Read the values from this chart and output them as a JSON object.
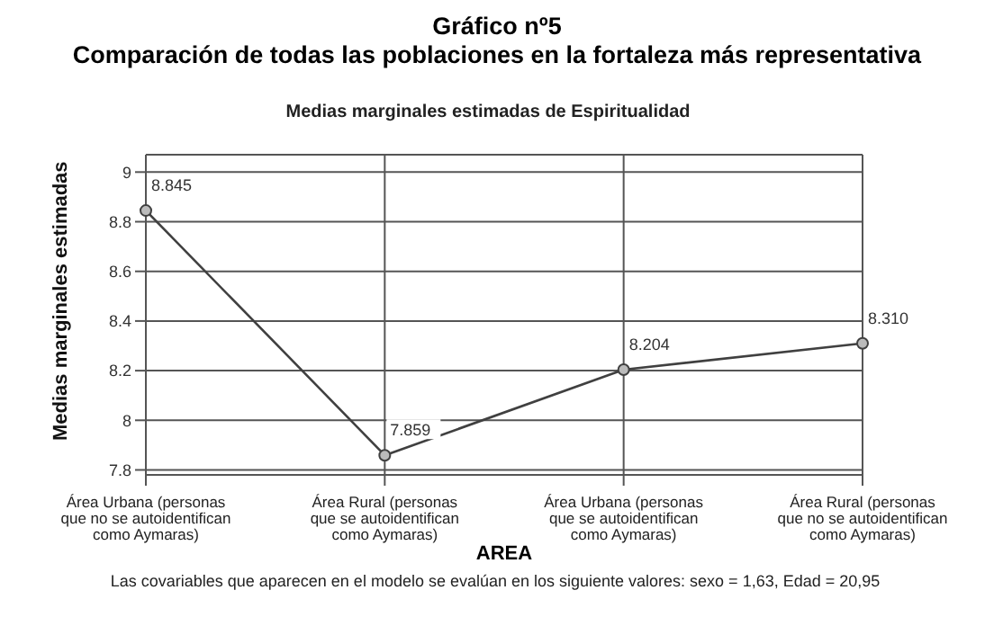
{
  "chart_data": {
    "type": "line",
    "title": "Gráfico nº5\nComparación de todas las poblaciones en la fortaleza más representativa",
    "subtitle": "Medias marginales estimadas de Espiritualidad",
    "xlabel": "AREA",
    "ylabel": "Medias marginales estimadas",
    "categories": [
      "Área Urbana (personas\nque no se autoidentifican\ncomo Aymaras)",
      "Área Rural (personas\nque se autoidentifican\ncomo Aymaras)",
      "Área Urbana (personas\nque se autoidentifican\ncomo Aymaras)",
      "Área Rural (personas\nque no se autoidentifican\ncomo Aymaras)"
    ],
    "series": [
      {
        "color": "#404040",
        "values": [
          8.845,
          7.859,
          8.204,
          8.31
        ],
        "value_labels": [
          "8.845",
          "7.859",
          "8.204",
          "8.310"
        ]
      }
    ],
    "ylim": [
      7.78,
      9.07
    ],
    "yticks": [
      7.8,
      8,
      8.2,
      8.4,
      8.6,
      8.8,
      9
    ],
    "grid": true,
    "marker": "circle",
    "line_style": "solid",
    "annotations": [
      "Las covariables que aparecen en el modelo se evalúan en los siguiente valores: sexo = 1,63, Edad = 20,95"
    ]
  }
}
